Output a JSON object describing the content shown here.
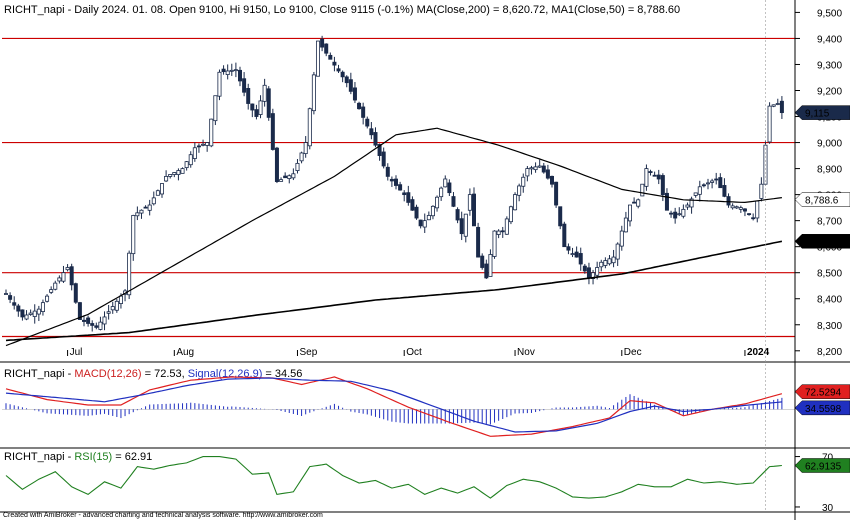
{
  "header": {
    "symbol": "RICHT_napi",
    "info": " - Daily 2024. 01. 08. Open 9100, Hi 9150, Lo 9100, Close 9115 (-0.1%)",
    "ma200_label": "MA(Close,200)",
    "ma200_value": " = 8,620.72,",
    "ma50_label": "MA1(Close,50)",
    "ma50_value": " = 8,788.60"
  },
  "macd_header": {
    "symbol": "RICHT_napi",
    "macd_label": "MACD(12,26)",
    "macd_value": " = 72.53,",
    "signal_label": "Signal(12,26,9)",
    "signal_value": " = 34.56"
  },
  "rsi_header": {
    "symbol": "RICHT_napi",
    "rsi_label": "RSI(15)",
    "rsi_value": " = 62.91"
  },
  "footer": "Created with AmiBroker - advanced charting and technical analysis software. http://www.amibroker.com",
  "colors": {
    "candle": "#1a2a4a",
    "hline": "#cc0000",
    "macd": "#e02020",
    "signal": "#2030c0",
    "rsi": "#208020",
    "ma": "#000000",
    "close_tag": "#1a2a4a",
    "macd_tag": "#e02020",
    "signal_tag": "#2030c0",
    "rsi_tag": "#208020"
  },
  "chart_data": [
    {
      "type": "candlestick",
      "title": "RICHT_napi - Daily",
      "x_months": [
        "Jul",
        "Aug",
        "Sep",
        "Oct",
        "Nov",
        "Dec",
        "2024"
      ],
      "y_ticks": [
        "8,200",
        "8,300",
        "8,400",
        "8,500",
        "8,600",
        "8,700",
        "8,800",
        "8,900",
        "9,000",
        "9,100",
        "9,200",
        "9,300",
        "9,400",
        "9,500"
      ],
      "ylim": [
        8180,
        9540
      ],
      "horizontal_lines": [
        9400,
        9000,
        8500,
        8255
      ],
      "last_close": 9115,
      "last_close_label": "9,115",
      "ma50_last": 8788.6,
      "ma50_label": "8,788.6",
      "ma200_last": 8620.72,
      "ma200_label": "8,620.72",
      "close_anchors": [
        [
          0,
          8420
        ],
        [
          4,
          8330
        ],
        [
          8,
          8360
        ],
        [
          12,
          8460
        ],
        [
          15,
          8520
        ],
        [
          18,
          8320
        ],
        [
          22,
          8290
        ],
        [
          26,
          8370
        ],
        [
          29,
          8430
        ],
        [
          31,
          8720
        ],
        [
          35,
          8760
        ],
        [
          39,
          8870
        ],
        [
          43,
          8900
        ],
        [
          46,
          8980
        ],
        [
          49,
          9000
        ],
        [
          52,
          9270
        ],
        [
          56,
          9280
        ],
        [
          59,
          9150
        ],
        [
          61,
          9100
        ],
        [
          63,
          9220
        ],
        [
          66,
          8850
        ],
        [
          70,
          8880
        ],
        [
          73,
          9000
        ],
        [
          76,
          9390
        ],
        [
          79,
          9320
        ],
        [
          83,
          9230
        ],
        [
          86,
          9130
        ],
        [
          89,
          9030
        ],
        [
          93,
          8870
        ],
        [
          97,
          8800
        ],
        [
          101,
          8680
        ],
        [
          103,
          8720
        ],
        [
          107,
          8860
        ],
        [
          111,
          8650
        ],
        [
          113,
          8800
        ],
        [
          115,
          8560
        ],
        [
          117,
          8480
        ],
        [
          119,
          8660
        ],
        [
          121,
          8660
        ],
        [
          124,
          8800
        ],
        [
          127,
          8900
        ],
        [
          130,
          8910
        ],
        [
          133,
          8840
        ],
        [
          136,
          8600
        ],
        [
          139,
          8560
        ],
        [
          142,
          8480
        ],
        [
          145,
          8540
        ],
        [
          148,
          8560
        ],
        [
          152,
          8760
        ],
        [
          154,
          8780
        ],
        [
          156,
          8900
        ],
        [
          159,
          8860
        ],
        [
          161,
          8740
        ],
        [
          163,
          8710
        ],
        [
          166,
          8760
        ],
        [
          169,
          8830
        ],
        [
          173,
          8860
        ],
        [
          176,
          8760
        ],
        [
          179,
          8750
        ],
        [
          182,
          8710
        ],
        [
          184,
          8840
        ],
        [
          186,
          9140
        ],
        [
          188,
          9150
        ],
        [
          189,
          9115
        ]
      ],
      "ma200_anchors": [
        [
          0,
          8240
        ],
        [
          30,
          8270
        ],
        [
          60,
          8335
        ],
        [
          90,
          8395
        ],
        [
          120,
          8435
        ],
        [
          150,
          8495
        ],
        [
          170,
          8560
        ],
        [
          189,
          8620.72
        ]
      ],
      "ma50_anchors": [
        [
          0,
          8220
        ],
        [
          20,
          8340
        ],
        [
          40,
          8520
        ],
        [
          60,
          8700
        ],
        [
          80,
          8870
        ],
        [
          95,
          9030
        ],
        [
          105,
          9055
        ],
        [
          120,
          8990
        ],
        [
          135,
          8910
        ],
        [
          150,
          8820
        ],
        [
          165,
          8780
        ],
        [
          180,
          8770
        ],
        [
          189,
          8788.6
        ]
      ]
    },
    {
      "type": "line",
      "title": "MACD(12,26), Signal(12,26,9)",
      "last_macd_label": "72.5294",
      "last_signal_label": "34.5598",
      "macd_anchors": [
        [
          0,
          95
        ],
        [
          10,
          45
        ],
        [
          20,
          20
        ],
        [
          28,
          20
        ],
        [
          35,
          90
        ],
        [
          45,
          135
        ],
        [
          55,
          150
        ],
        [
          65,
          145
        ],
        [
          72,
          115
        ],
        [
          80,
          150
        ],
        [
          88,
          95
        ],
        [
          98,
          10
        ],
        [
          108,
          -60
        ],
        [
          118,
          -125
        ],
        [
          128,
          -115
        ],
        [
          138,
          -80
        ],
        [
          147,
          -40
        ],
        [
          152,
          40
        ],
        [
          158,
          30
        ],
        [
          165,
          -30
        ],
        [
          172,
          0
        ],
        [
          180,
          25
        ],
        [
          189,
          72.53
        ]
      ],
      "signal_anchors": [
        [
          0,
          75
        ],
        [
          12,
          55
        ],
        [
          24,
          35
        ],
        [
          34,
          70
        ],
        [
          44,
          110
        ],
        [
          54,
          140
        ],
        [
          64,
          145
        ],
        [
          74,
          135
        ],
        [
          84,
          130
        ],
        [
          94,
          85
        ],
        [
          104,
          15
        ],
        [
          114,
          -55
        ],
        [
          124,
          -105
        ],
        [
          134,
          -100
        ],
        [
          144,
          -65
        ],
        [
          152,
          -10
        ],
        [
          158,
          15
        ],
        [
          165,
          -10
        ],
        [
          172,
          0
        ],
        [
          180,
          18
        ],
        [
          189,
          34.56
        ]
      ],
      "ylim": [
        -170,
        210
      ]
    },
    {
      "type": "line",
      "title": "RSI(15)",
      "y_ticks": [
        "30",
        "70"
      ],
      "ylim": [
        26,
        76
      ],
      "last_rsi_label": "62.9135",
      "rsi_anchors": [
        [
          0,
          55
        ],
        [
          4,
          44
        ],
        [
          8,
          52
        ],
        [
          12,
          58
        ],
        [
          16,
          46
        ],
        [
          20,
          40
        ],
        [
          24,
          50
        ],
        [
          28,
          45
        ],
        [
          32,
          62
        ],
        [
          36,
          60
        ],
        [
          40,
          63
        ],
        [
          44,
          65
        ],
        [
          48,
          70
        ],
        [
          52,
          70
        ],
        [
          56,
          68
        ],
        [
          60,
          56
        ],
        [
          64,
          57
        ],
        [
          66,
          40
        ],
        [
          70,
          42
        ],
        [
          74,
          62
        ],
        [
          78,
          64
        ],
        [
          82,
          55
        ],
        [
          86,
          49
        ],
        [
          90,
          51
        ],
        [
          94,
          45
        ],
        [
          98,
          48
        ],
        [
          102,
          40
        ],
        [
          106,
          45
        ],
        [
          110,
          41
        ],
        [
          114,
          46
        ],
        [
          118,
          37
        ],
        [
          122,
          47
        ],
        [
          126,
          52
        ],
        [
          130,
          50
        ],
        [
          134,
          45
        ],
        [
          138,
          38
        ],
        [
          142,
          37
        ],
        [
          146,
          38
        ],
        [
          150,
          42
        ],
        [
          154,
          48
        ],
        [
          158,
          46
        ],
        [
          162,
          46
        ],
        [
          166,
          52
        ],
        [
          170,
          49
        ],
        [
          174,
          50
        ],
        [
          178,
          48
        ],
        [
          182,
          49
        ],
        [
          186,
          62
        ],
        [
          189,
          62.91
        ]
      ]
    }
  ]
}
